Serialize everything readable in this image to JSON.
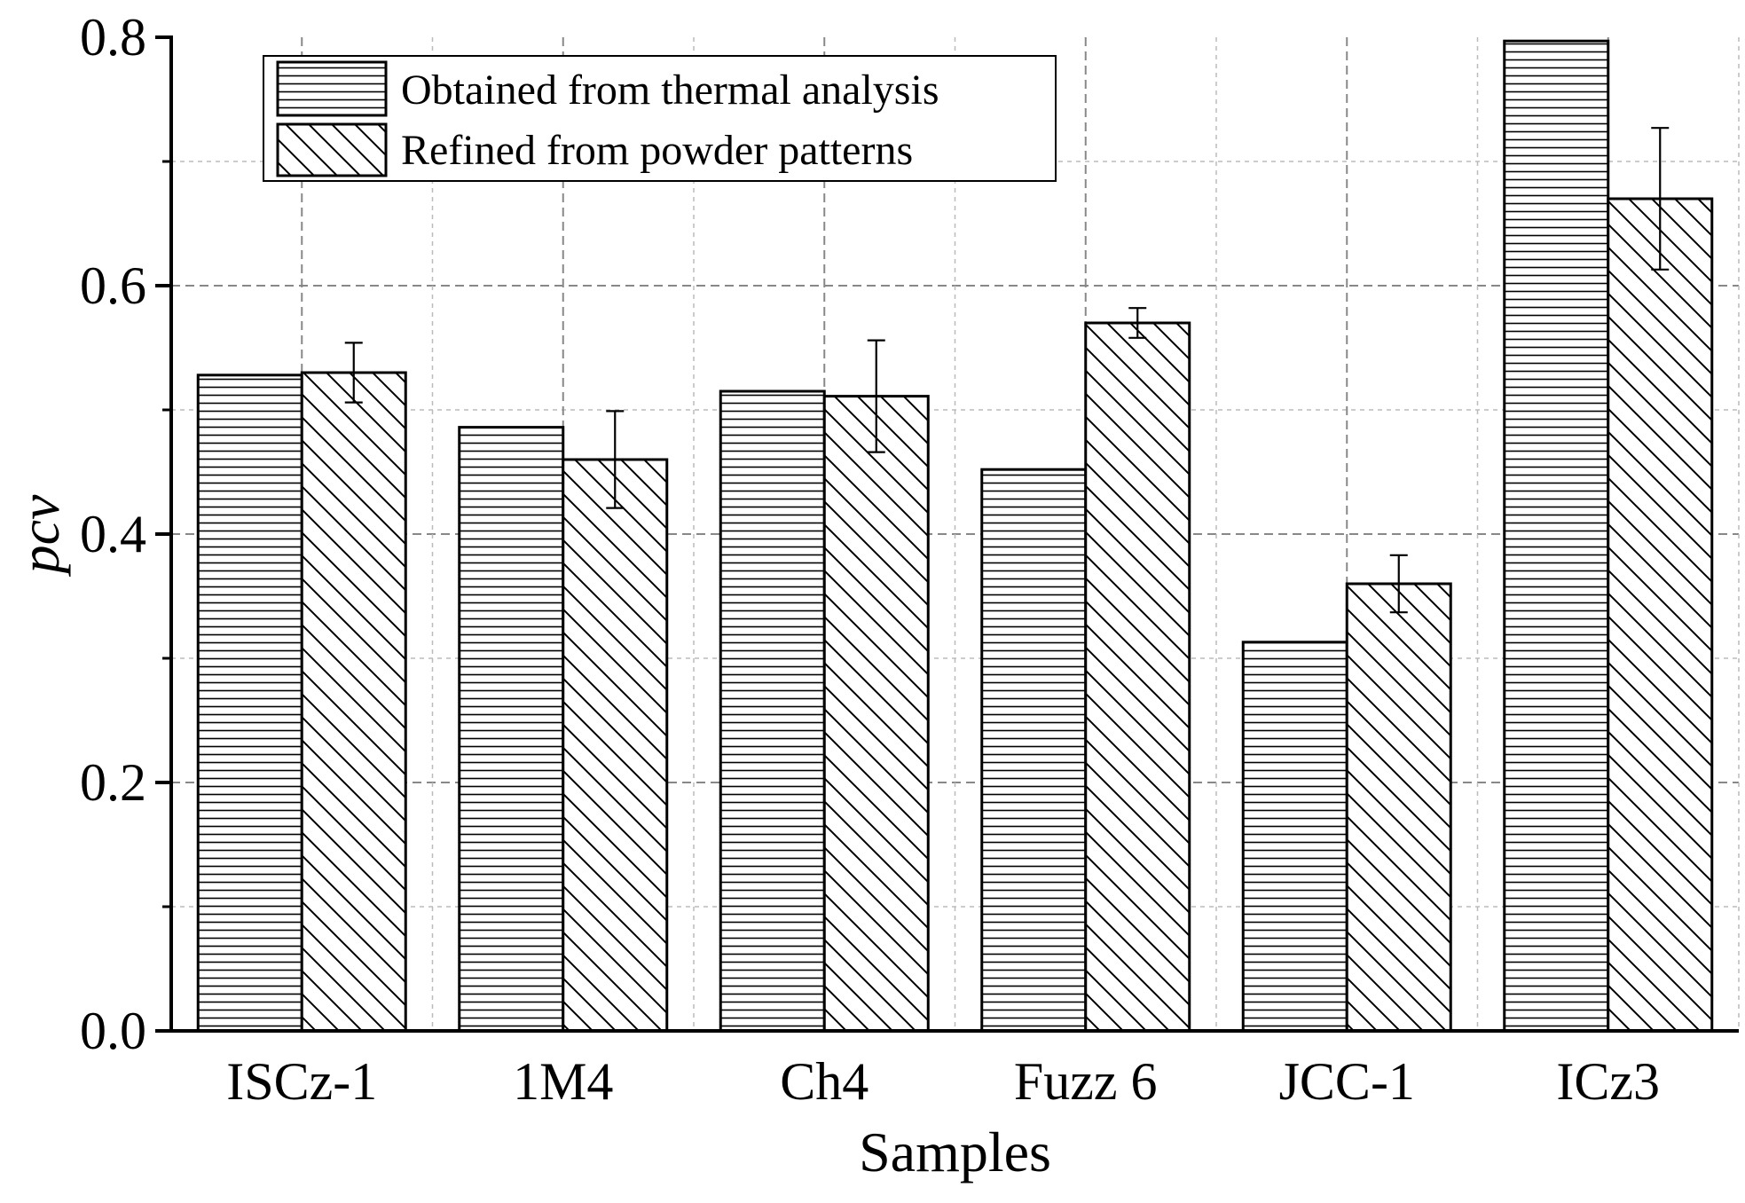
{
  "chart_data": {
    "type": "bar",
    "title": "",
    "xlabel": "Samples",
    "ylabel": "pcv",
    "ylim": [
      0,
      0.8
    ],
    "yticks": [
      0.0,
      0.2,
      0.4,
      0.6,
      0.8
    ],
    "ytick_labels": [
      "0.0",
      "0.2",
      "0.4",
      "0.6",
      "0.8"
    ],
    "grid": true,
    "legend_position": "top-left",
    "categories": [
      "ISCz-1",
      "1M4",
      "Ch4",
      "Fuzz 6",
      "JCC-1",
      "ICz3"
    ],
    "series": [
      {
        "name": "Obtained from thermal analysis",
        "pattern": "horizontal-lines",
        "values": [
          0.528,
          0.486,
          0.515,
          0.452,
          0.313,
          0.797
        ]
      },
      {
        "name": "Refined from powder patterns",
        "pattern": "diagonal-lines",
        "values": [
          0.53,
          0.46,
          0.511,
          0.57,
          0.36,
          0.67
        ],
        "errors": [
          0.024,
          0.039,
          0.045,
          0.012,
          0.023,
          0.057
        ]
      }
    ]
  },
  "colors": {
    "stroke": "#000000",
    "background": "#ffffff",
    "grid": "#999999"
  }
}
